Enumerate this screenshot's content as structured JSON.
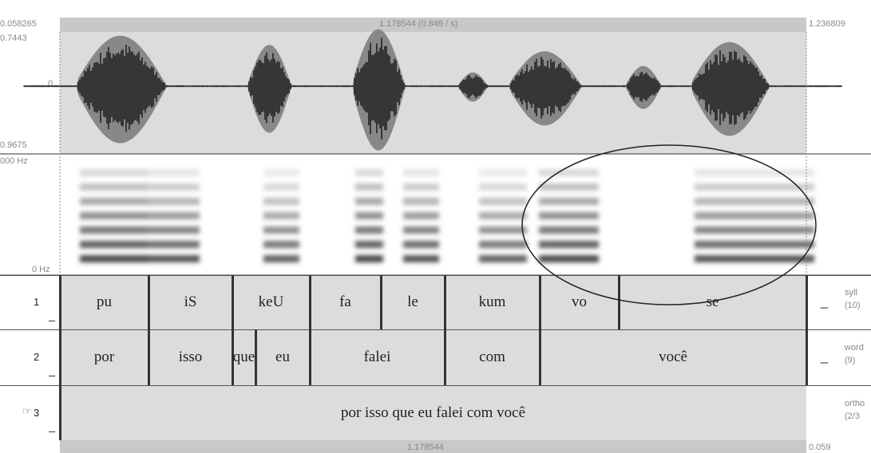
{
  "ruler_top": {
    "start": "0.058265",
    "selection": "1.178544 (0.849 / s)",
    "end": "1.236809"
  },
  "waveform": {
    "max": "0.7443",
    "zero": "0",
    "min": "0.9675"
  },
  "spectrogram": {
    "max": "000 Hz",
    "min": "0 Hz"
  },
  "tiers": [
    {
      "number": "1",
      "name": "syll",
      "count": "(10)",
      "intervals": [
        "_",
        "pu",
        "iS",
        "keU",
        "fa",
        "le",
        "kum",
        "vo",
        "se",
        "_"
      ]
    },
    {
      "number": "2",
      "name": "word",
      "count": "(9)",
      "intervals": [
        "_",
        "por",
        "isso",
        "que",
        "eu",
        "falei",
        "com",
        "você",
        "_"
      ]
    },
    {
      "number": "3",
      "name": "ortho",
      "count": "(2/3",
      "intervals": [
        "_",
        "por isso que eu falei com você"
      ]
    }
  ],
  "ruler_bottom": {
    "selection": "1.178544",
    "end": "0.059"
  }
}
